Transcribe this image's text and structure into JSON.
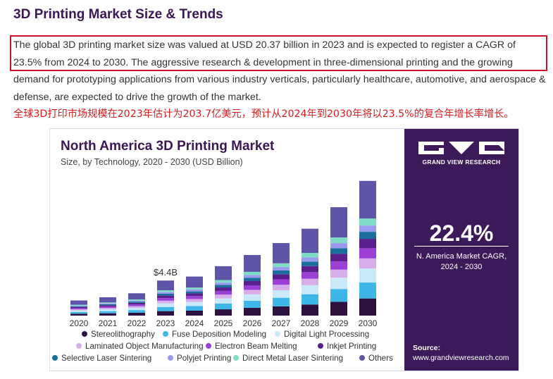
{
  "article": {
    "heading": "3D Printing Market Size & Trends",
    "paragraph": "The global 3D printing market size was valued at USD 20.37 billion in 2023 and is expected to register a CAGR of 23.5% from 2024 to 2030. The aggressive research & development in three-dimensional printing and the growing demand for prototyping applications from various industry verticals, particularly healthcare, automotive, and aerospace & defense, are expected to drive the growth of the market.",
    "translation_note": "全球3D打印市场规模在2023年估计为203.7亿美元，预计从2024年到2030年将以23.5%的复合年增长率增长。"
  },
  "chart_data": {
    "type": "bar",
    "stacked": true,
    "title": "North America 3D Printing Market",
    "subtitle": "Size, by Technology, 2020 - 2030 (USD Billion)",
    "categories": [
      "2020",
      "2021",
      "2022",
      "2023",
      "2024",
      "2025",
      "2026",
      "2027",
      "2028",
      "2029",
      "2030"
    ],
    "totals": [
      1.9,
      2.3,
      2.8,
      4.4,
      4.9,
      6.2,
      7.6,
      9.1,
      10.9,
      13.6,
      16.9
    ],
    "annotation": {
      "category": "2023",
      "text": "$4.4B"
    },
    "ylim": [
      0,
      17.5
    ],
    "series": [
      {
        "name": "Stereolithography",
        "color": "#2b1040",
        "values": [
          0.24,
          0.29,
          0.36,
          0.56,
          0.62,
          0.79,
          0.97,
          1.16,
          1.39,
          1.73,
          2.15
        ]
      },
      {
        "name": "Fuse Deposition Modeling",
        "color": "#3fb6e8",
        "values": [
          0.22,
          0.27,
          0.33,
          0.52,
          0.58,
          0.73,
          0.9,
          1.08,
          1.29,
          1.61,
          2.0
        ]
      },
      {
        "name": "Digital Light Processing",
        "color": "#c9e9f8",
        "values": [
          0.2,
          0.24,
          0.29,
          0.46,
          0.51,
          0.64,
          0.79,
          0.95,
          1.13,
          1.41,
          1.76
        ]
      },
      {
        "name": "Laminated Object Manufacturing",
        "color": "#d8aeea",
        "values": [
          0.14,
          0.17,
          0.21,
          0.33,
          0.37,
          0.47,
          0.57,
          0.68,
          0.82,
          1.02,
          1.27
        ]
      },
      {
        "name": "Electron Beam Melting",
        "color": "#9b3fd6",
        "values": [
          0.14,
          0.17,
          0.21,
          0.33,
          0.37,
          0.47,
          0.57,
          0.68,
          0.82,
          1.02,
          1.27
        ]
      },
      {
        "name": "Inkjet Printing",
        "color": "#5a1f8c",
        "values": [
          0.13,
          0.16,
          0.2,
          0.31,
          0.34,
          0.43,
          0.53,
          0.64,
          0.76,
          0.95,
          1.18
        ]
      },
      {
        "name": "Selective Laser Sintering",
        "color": "#1b6e9c",
        "values": [
          0.1,
          0.12,
          0.15,
          0.23,
          0.25,
          0.32,
          0.4,
          0.47,
          0.57,
          0.71,
          0.88
        ]
      },
      {
        "name": "Polyjet Printing",
        "color": "#9c9af0",
        "values": [
          0.09,
          0.11,
          0.13,
          0.21,
          0.23,
          0.29,
          0.36,
          0.43,
          0.51,
          0.64,
          0.79
        ]
      },
      {
        "name": "Direct Metal Laser Sintering",
        "color": "#7fdcc6",
        "values": [
          0.1,
          0.12,
          0.15,
          0.23,
          0.25,
          0.32,
          0.4,
          0.47,
          0.57,
          0.71,
          0.88
        ]
      },
      {
        "name": "Others",
        "color": "#5e55a8",
        "values": [
          0.54,
          0.65,
          0.77,
          1.22,
          1.38,
          1.74,
          2.11,
          2.54,
          3.04,
          3.8,
          4.72
        ]
      }
    ]
  },
  "sidebar": {
    "brand_name": "GRAND VIEW RESEARCH",
    "brand_colors": {
      "bg": "#3c1a59",
      "accent": "#ffffff"
    },
    "cagr_value": "22.4%",
    "cagr_label_line1": "N. America Market CAGR,",
    "cagr_label_line2": "2024 - 2030",
    "source_label": "Source:",
    "source_url": "www.grandviewresearch.com"
  }
}
